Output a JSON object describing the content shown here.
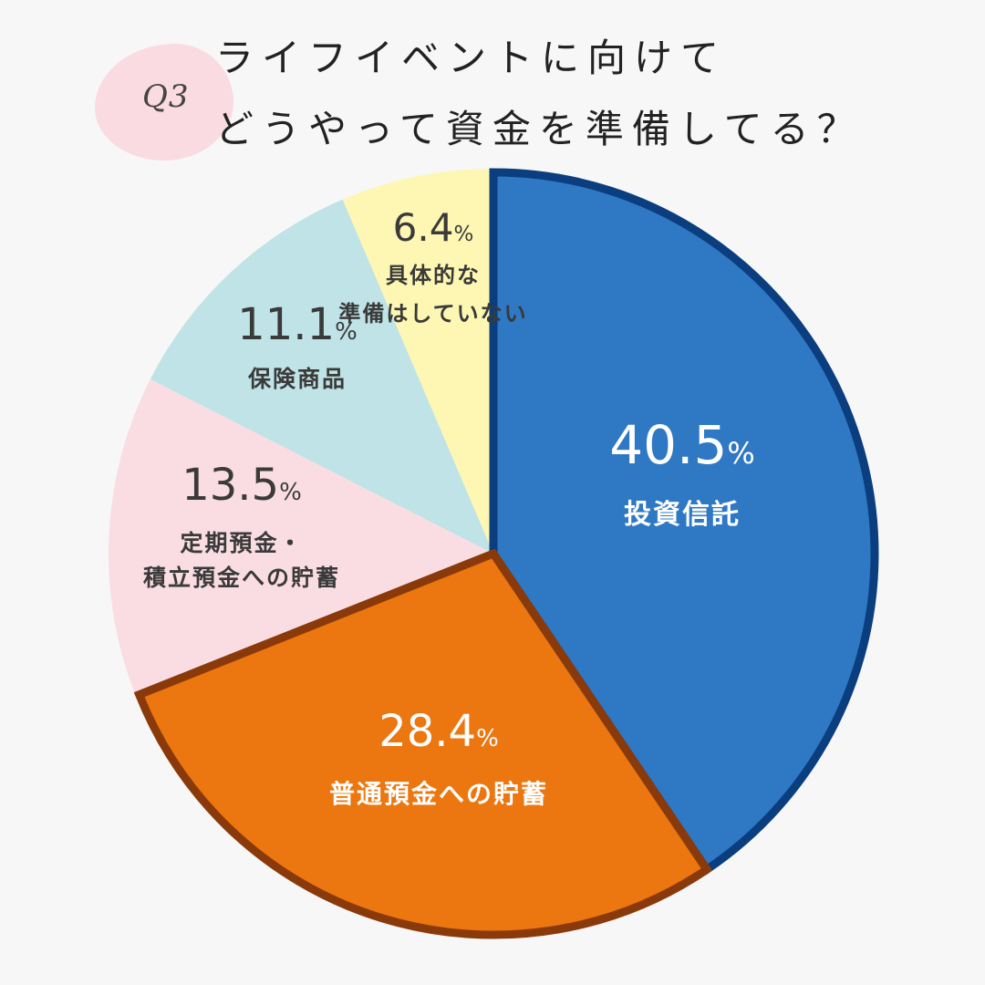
{
  "header": {
    "badge": "Q3",
    "title_line1": "ライフイベントに向けて",
    "title_line2": "どうやって資金を準備してる？"
  },
  "chart_data": {
    "type": "pie",
    "title": "ライフイベントに向けてどうやって資金を準備してる？",
    "unit": "%",
    "start_angle": "12 o'clock, clockwise",
    "slices": [
      {
        "label": "投資信託",
        "value": 40.5,
        "value_text": "40.5",
        "label_lines": [
          "投資信託"
        ],
        "color": "#2f78c4",
        "border": "#0a3e7e",
        "text_color": "#ffffff",
        "highlighted": true
      },
      {
        "label": "普通預金への貯蓄",
        "value": 28.4,
        "value_text": "28.4",
        "label_lines": [
          "普通預金への貯蓄"
        ],
        "color": "#ec760f",
        "border": "#8a3a0a",
        "text_color": "#ffffff",
        "highlighted": true
      },
      {
        "label": "定期預金・積立預金への貯蓄",
        "value": 13.5,
        "value_text": "13.5",
        "label_lines": [
          "定期預金・",
          "積立預金への貯蓄"
        ],
        "color": "#fadde3",
        "text_color": "#3a3a3a",
        "highlighted": false
      },
      {
        "label": "保険商品",
        "value": 11.1,
        "value_text": "11.1",
        "label_lines": [
          "保険商品"
        ],
        "color": "#bfe3e6",
        "text_color": "#3a3a3a",
        "highlighted": false
      },
      {
        "label": "具体的な準備はしていない",
        "value": 6.4,
        "value_text": "6.4",
        "label_lines": [
          "具体的な",
          "準備はしていない"
        ],
        "color": "#fdf7b3",
        "text_color": "#3a3a3a",
        "highlighted": false
      }
    ]
  }
}
